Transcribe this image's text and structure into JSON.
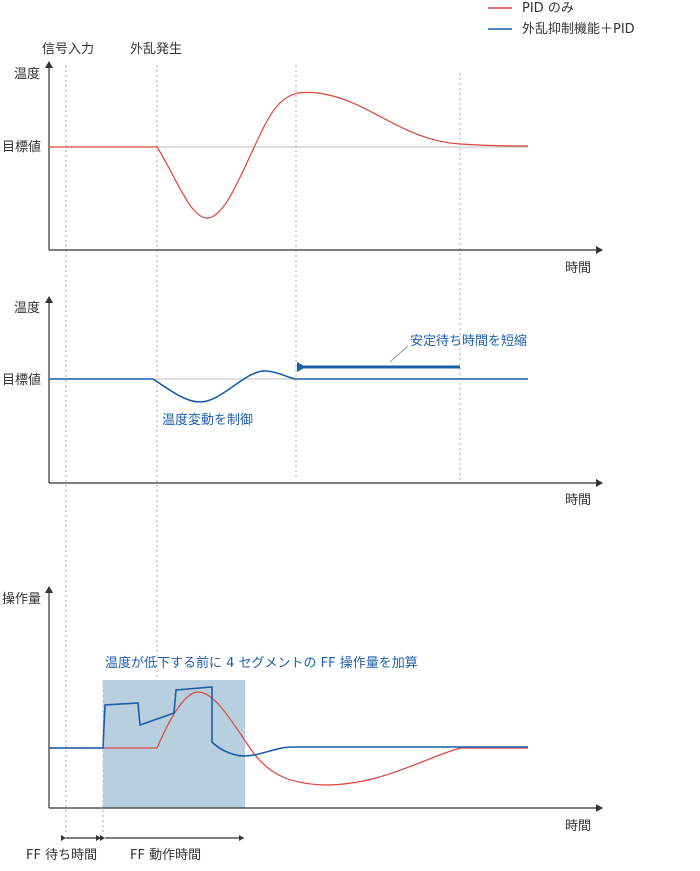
{
  "legend": [
    {
      "label": "PID のみ",
      "color": "#e0433c"
    },
    {
      "label": "外乱抑制機能＋PID",
      "color": "#1a5eab"
    }
  ],
  "events": {
    "signal_input": "信号入力",
    "disturbance": "外乱発生"
  },
  "panel1": {
    "ylabel": "温度",
    "target_label": "目標値",
    "xlabel": "時間"
  },
  "panel2": {
    "ylabel": "温度",
    "target_label": "目標値",
    "xlabel": "時間",
    "annotation_settle": "安定待ち時間を短縮",
    "annotation_control": "温度変動を制御"
  },
  "panel3": {
    "ylabel": "操作量",
    "xlabel": "時間",
    "annotation_ff": "温度が低下する前に 4 セグメントの FF 操作量を加算",
    "shade_color": "#b8cfdf"
  },
  "bottom": {
    "ff_wait": "FF 待ち時間",
    "ff_action": "FF 動作時間"
  }
}
